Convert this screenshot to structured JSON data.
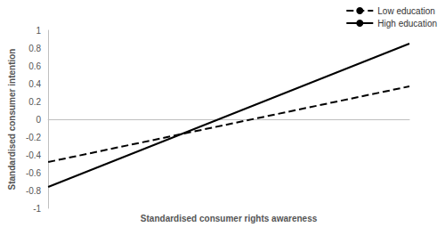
{
  "chart_data": {
    "type": "line",
    "x_label": "Standardised consumer rights awareness",
    "y_label": "Standardised consumer intention",
    "categories": [
      null,
      null
    ],
    "series": [
      {
        "name": "Low education",
        "color": "#000000",
        "line_style": "dashed",
        "values": [
          -0.48,
          0.37
        ]
      },
      {
        "name": "High education",
        "color": "#000000",
        "line_style": "solid",
        "values": [
          -0.76,
          0.85
        ]
      }
    ],
    "ylim": [
      -1,
      1
    ],
    "yticks": [
      -1,
      -0.8,
      -0.6,
      -0.4,
      -0.2,
      0,
      0.2,
      0.4,
      0.6,
      0.8,
      1
    ],
    "grid": false,
    "legend": "top-right",
    "tick_labels": "y"
  }
}
